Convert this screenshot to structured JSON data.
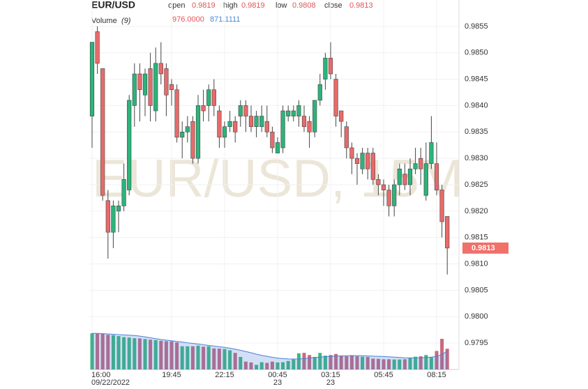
{
  "header": {
    "symbol": "EUR/USD",
    "fields": [
      {
        "label": "open",
        "value": "0.9819"
      },
      {
        "label": "high",
        "value": "0.9819"
      },
      {
        "label": "low",
        "value": "0.9808"
      },
      {
        "label": "close",
        "value": "0.9813"
      }
    ],
    "volume_label": "Volume",
    "volume_period": "(9)",
    "volume_value": "976.0000",
    "volume_ma_value": "871.1111"
  },
  "chart_data": {
    "type": "candlestick",
    "watermark": "EUR/USD, 15M",
    "categories": [
      "16:00",
      null,
      null,
      null,
      null,
      null,
      null,
      null,
      null,
      null,
      null,
      null,
      null,
      null,
      null,
      "19:45",
      null,
      null,
      null,
      null,
      null,
      null,
      null,
      null,
      null,
      "22:15",
      null,
      null,
      null,
      null,
      null,
      null,
      null,
      null,
      null,
      "00:45",
      null,
      null,
      null,
      null,
      null,
      null,
      null,
      null,
      null,
      "03:15",
      null,
      null,
      null,
      null,
      null,
      null,
      null,
      null,
      null,
      "05:45",
      null,
      null,
      null,
      null,
      null,
      null,
      null,
      null,
      null,
      "08:15",
      null,
      null
    ],
    "dates": [
      "09/22/2022",
      null,
      null,
      null,
      null,
      null,
      null,
      null,
      null,
      null,
      null,
      null,
      null,
      null,
      null,
      null,
      null,
      null,
      null,
      null,
      null,
      null,
      null,
      null,
      null,
      null,
      null,
      null,
      null,
      null,
      null,
      null,
      null,
      null,
      null,
      "23",
      null,
      null,
      null,
      null,
      null,
      null,
      null,
      null,
      null,
      "23",
      null,
      null,
      null,
      null,
      null,
      null,
      null,
      null,
      null,
      null,
      null,
      null,
      null,
      null,
      null,
      null,
      null,
      null,
      null,
      null,
      null,
      null
    ],
    "open": [
      0.9838,
      0.9854,
      0.9847,
      0.9822,
      0.9816,
      0.982,
      0.9821,
      0.9824,
      0.984,
      0.9846,
      0.9842,
      0.9847,
      0.9839,
      0.9848,
      0.9847,
      0.9844,
      0.9843,
      0.9834,
      0.9835,
      0.9837,
      0.983,
      0.984,
      0.984,
      0.9843,
      0.9839,
      0.9834,
      0.9836,
      0.9837,
      0.9838,
      0.984,
      0.9838,
      0.9836,
      0.9836,
      0.9837,
      0.9835,
      0.9831,
      0.9832,
      0.9838,
      0.9838,
      0.9838,
      0.9838,
      0.9837,
      0.9835,
      0.9841,
      0.9845,
      0.9849,
      0.9845,
      0.9839,
      0.9836,
      0.9832,
      0.983,
      0.9828,
      0.9831,
      0.9831,
      0.9826,
      0.9825,
      0.9824,
      0.9821,
      0.9825,
      0.9827,
      0.9825,
      0.9828,
      0.983,
      0.9823,
      0.9829,
      0.9829,
      0.9824,
      0.9819
    ],
    "high": [
      0.9852,
      0.9855,
      0.9847,
      0.9824,
      0.9822,
      0.9822,
      0.9829,
      0.9842,
      0.9848,
      0.9848,
      0.9847,
      0.985,
      0.9851,
      0.9852,
      0.9848,
      0.9845,
      0.9844,
      0.9837,
      0.9838,
      0.9838,
      0.9842,
      0.9843,
      0.9844,
      0.9845,
      0.984,
      0.9837,
      0.9839,
      0.9838,
      0.9841,
      0.9841,
      0.984,
      0.9839,
      0.984,
      0.984,
      0.9836,
      0.9834,
      0.984,
      0.984,
      0.984,
      0.9841,
      0.984,
      0.9838,
      0.9841,
      0.9846,
      0.985,
      0.9852,
      0.9846,
      0.9839,
      0.9837,
      0.9833,
      0.9831,
      0.9832,
      0.9832,
      0.9832,
      0.9827,
      0.9826,
      0.9825,
      0.9826,
      0.9829,
      0.9829,
      0.983,
      0.9832,
      0.9832,
      0.9833,
      0.9838,
      0.9833,
      0.9825,
      0.9819
    ],
    "low": [
      0.9832,
      0.9846,
      0.9822,
      0.9811,
      0.9813,
      0.9816,
      0.982,
      0.9823,
      0.9836,
      0.9837,
      0.9838,
      0.9837,
      0.9837,
      0.9844,
      0.9838,
      0.984,
      0.9833,
      0.983,
      0.9833,
      0.9829,
      0.9829,
      0.9837,
      0.9837,
      0.9838,
      0.9832,
      0.9832,
      0.9835,
      0.9833,
      0.9836,
      0.9835,
      0.9835,
      0.9834,
      0.9835,
      0.9834,
      0.9831,
      0.9831,
      0.9831,
      0.9837,
      0.9837,
      0.9836,
      0.9835,
      0.9832,
      0.9834,
      0.984,
      0.9843,
      0.9845,
      0.9836,
      0.9834,
      0.983,
      0.9827,
      0.9825,
      0.9827,
      0.9826,
      0.9825,
      0.9823,
      0.9821,
      0.9819,
      0.9819,
      0.9823,
      0.9824,
      0.9823,
      0.9827,
      0.9825,
      0.9822,
      0.9828,
      0.9823,
      0.9815,
      0.9808
    ],
    "close": [
      0.9852,
      0.9848,
      0.9823,
      0.9816,
      0.9821,
      0.9821,
      0.9826,
      0.9841,
      0.9846,
      0.9843,
      0.9846,
      0.984,
      0.9848,
      0.9846,
      0.9842,
      0.9843,
      0.9834,
      0.9835,
      0.9836,
      0.983,
      0.984,
      0.9839,
      0.9843,
      0.984,
      0.9834,
      0.9836,
      0.9837,
      0.9835,
      0.984,
      0.9838,
      0.9836,
      0.9838,
      0.9838,
      0.9835,
      0.9832,
      0.9833,
      0.9839,
      0.9839,
      0.9839,
      0.984,
      0.9836,
      0.9835,
      0.9841,
      0.9844,
      0.9849,
      0.9846,
      0.9838,
      0.9837,
      0.9832,
      0.983,
      0.9829,
      0.9831,
      0.9828,
      0.9826,
      0.9825,
      0.9824,
      0.9821,
      0.9825,
      0.9828,
      0.9825,
      0.9828,
      0.9829,
      0.9828,
      0.9829,
      0.9833,
      0.9824,
      0.9818,
      0.9813
    ],
    "ylim": [
      0.979,
      0.986
    ],
    "yticks": [
      0.9795,
      {
        "value": 0.98,
        "label": "0.9800"
      },
      0.9805,
      {
        "value": 0.981,
        "label": "0.9810"
      },
      0.9815,
      {
        "value": 0.982,
        "label": "0.9820"
      },
      0.9825,
      {
        "value": 0.983,
        "label": "0.9830"
      },
      0.9835,
      {
        "value": 0.984,
        "label": "0.9840"
      },
      0.9845,
      {
        "value": 0.985,
        "label": "0.9850"
      },
      0.9855
    ],
    "grid": true,
    "up_color": "#2db37a",
    "down_color": "#e86a6a",
    "volume": {
      "values": [
        1700,
        1690,
        1670,
        1630,
        1610,
        1570,
        1520,
        1500,
        1470,
        1460,
        1430,
        1400,
        1380,
        1350,
        1330,
        1320,
        1270,
        1090,
        1090,
        1090,
        1120,
        1070,
        1090,
        990,
        980,
        960,
        900,
        780,
        590,
        370,
        330,
        220,
        340,
        310,
        370,
        330,
        340,
        400,
        470,
        760,
        780,
        680,
        590,
        780,
        650,
        680,
        730,
        650,
        620,
        670,
        620,
        600,
        590,
        510,
        500,
        480,
        480,
        470,
        470,
        480,
        540,
        600,
        620,
        680,
        570,
        870,
        1440,
        976
      ],
      "ma": [
        1700,
        1695,
        1685,
        1670,
        1655,
        1640,
        1625,
        1610,
        1595,
        1570,
        1530,
        1490,
        1450,
        1410,
        1380,
        1350,
        1320,
        1290,
        1255,
        1225,
        1195,
        1165,
        1130,
        1100,
        1070,
        1040,
        1000,
        955,
        900,
        845,
        785,
        720,
        665,
        620,
        575,
        535,
        510,
        495,
        490,
        495,
        510,
        535,
        560,
        580,
        600,
        615,
        630,
        640,
        645,
        650,
        650,
        645,
        635,
        625,
        620,
        610,
        595,
        580,
        565,
        550,
        545,
        545,
        550,
        565,
        580,
        620,
        700,
        871.1111
      ],
      "ylim": [
        0,
        1900
      ],
      "up_color": "#3cb97c",
      "down_color": "#c9697e",
      "ma_color": "#4a7fd6"
    }
  }
}
